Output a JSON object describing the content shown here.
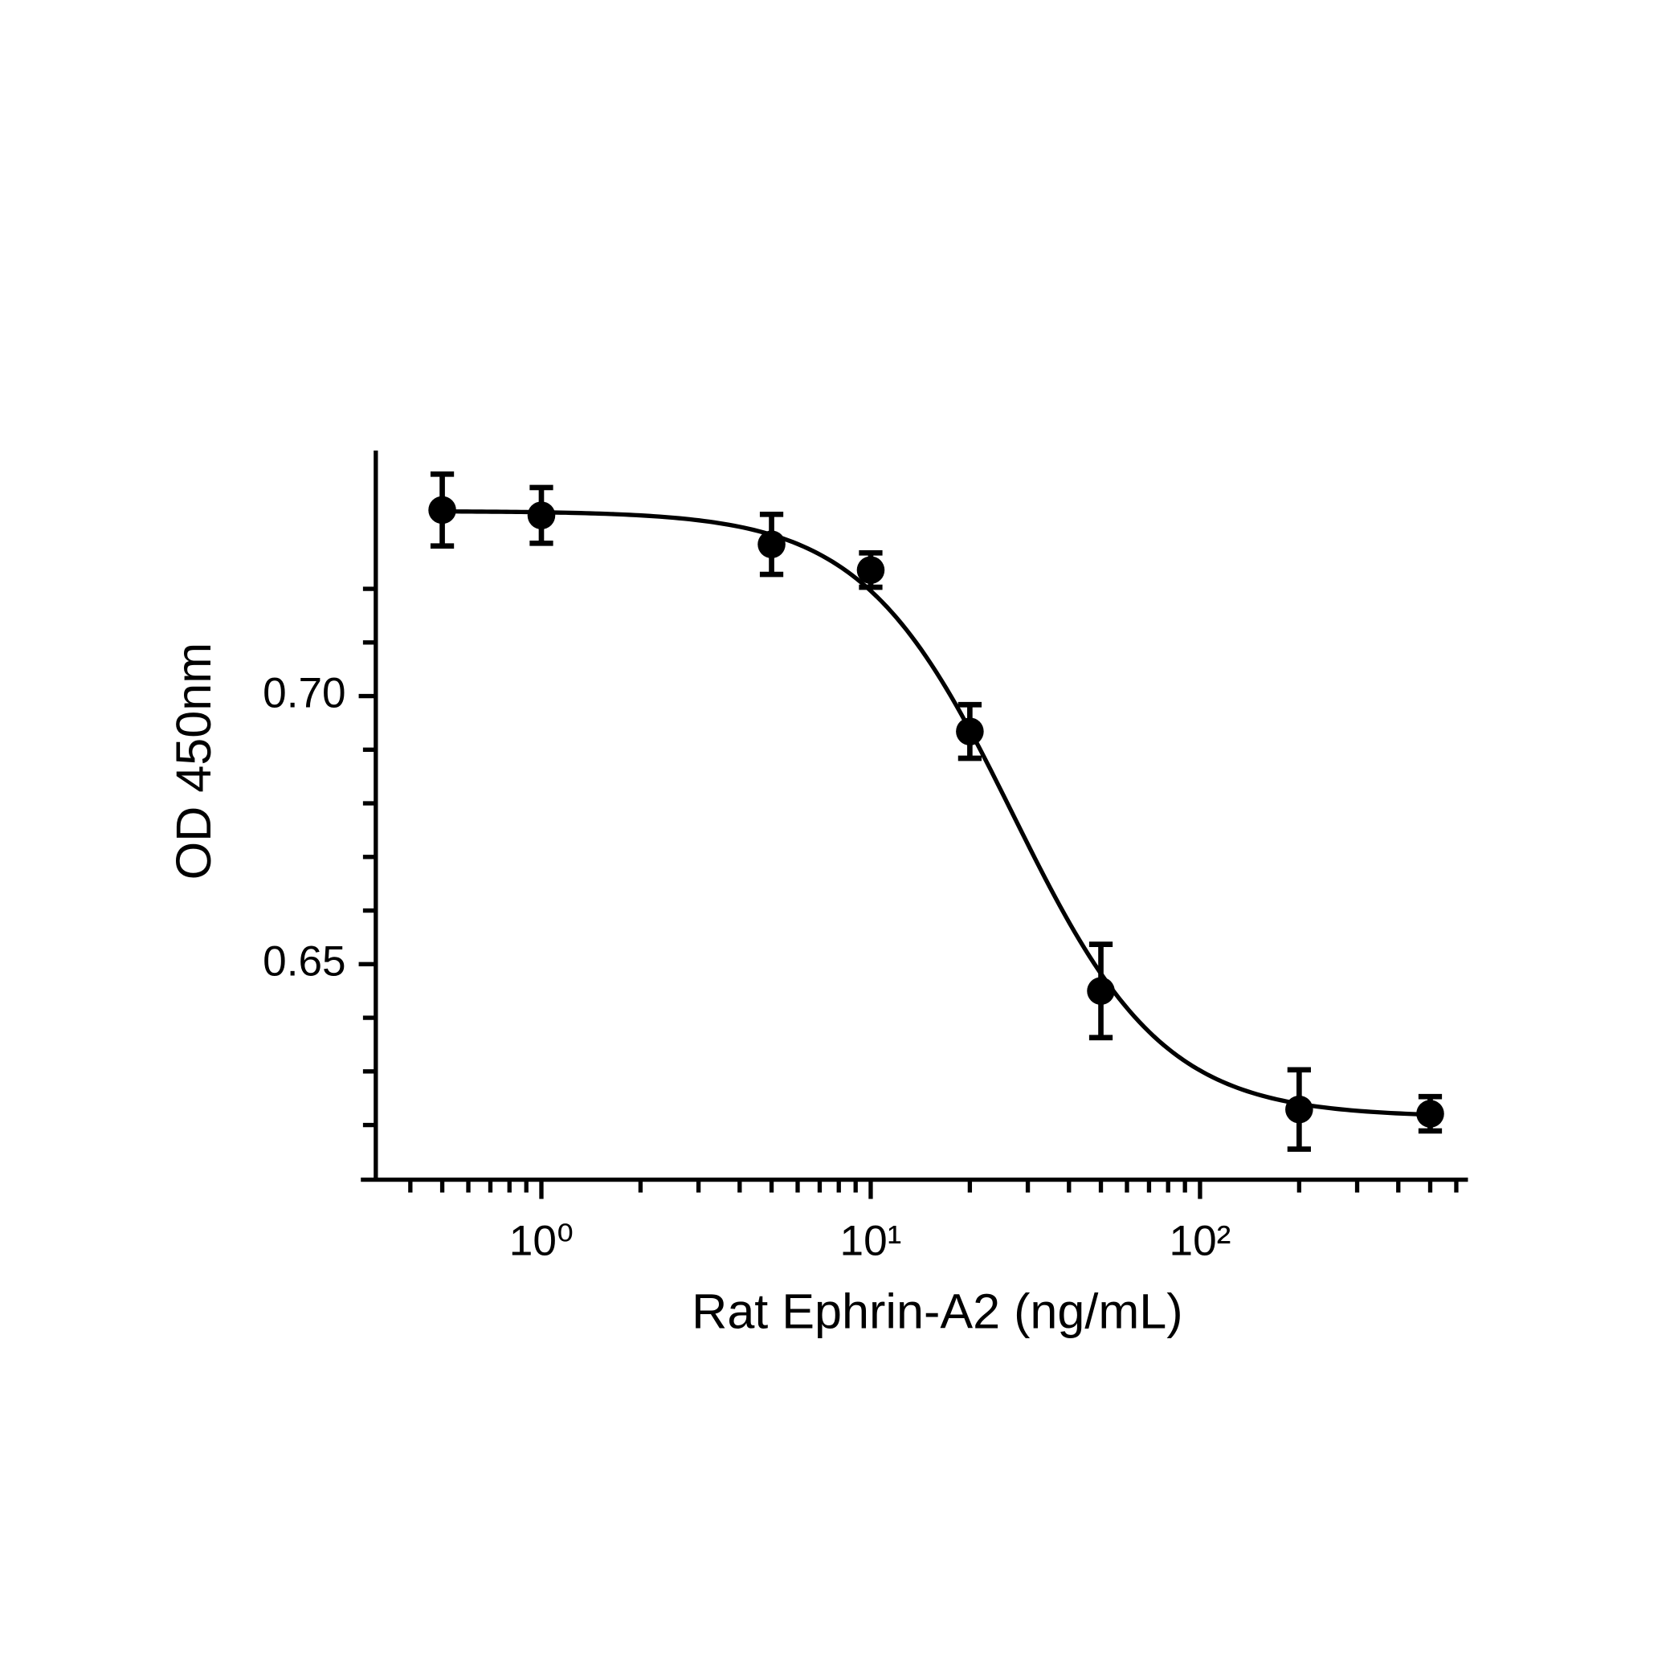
{
  "chart_data": {
    "type": "scatter",
    "x_label": "Rat Ephrin-A2 (ng/mL)",
    "y_label": "OD 450nm",
    "x_log": true,
    "xlim": [
      0.283,
      651
    ],
    "ylim": [
      0.6098,
      0.7458
    ],
    "xticks": [
      {
        "value": 1,
        "label": "10⁰"
      },
      {
        "value": 10,
        "label": "10¹"
      },
      {
        "value": 100,
        "label": "10²"
      }
    ],
    "xminorticks": [
      0.4,
      0.5,
      0.6,
      0.7,
      0.8,
      0.9,
      2,
      3,
      4,
      5,
      6,
      7,
      8,
      9,
      20,
      30,
      40,
      50,
      60,
      70,
      80,
      90,
      200,
      300,
      400,
      500,
      600
    ],
    "yticks": [
      {
        "value": 0.65,
        "label": "0.65"
      },
      {
        "value": 0.7,
        "label": "0.70"
      }
    ],
    "yminorticks": [
      0.62,
      0.63,
      0.64,
      0.66,
      0.67,
      0.68,
      0.69,
      0.71,
      0.72
    ],
    "series": [
      {
        "color": "#000000",
        "x": [
          0.5,
          1,
          5,
          10,
          20,
          50,
          200,
          500
        ],
        "values": [
          0.7347,
          0.7337,
          0.7283,
          0.7235,
          0.6934,
          0.645,
          0.6229,
          0.6221
        ],
        "errors": [
          0.0067,
          0.0052,
          0.0056,
          0.0032,
          0.005,
          0.0087,
          0.0074,
          0.0032
        ]
      }
    ],
    "fit": {
      "top": 0.7345,
      "bottom": 0.6215,
      "ec50": 27,
      "hill": 1.9
    }
  }
}
